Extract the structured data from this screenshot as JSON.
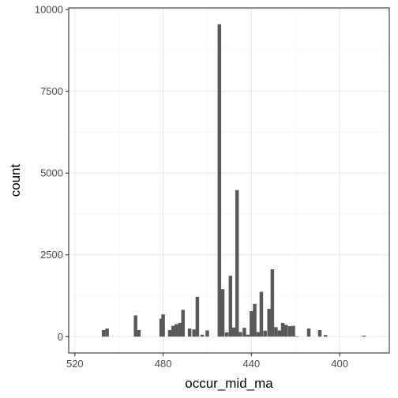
{
  "chart_data": {
    "type": "bar",
    "xlabel": "occur_mid_ma",
    "ylabel": "count",
    "x_reversed": true,
    "xlim": [
      522.8,
      377.5
    ],
    "ylim": [
      -500,
      10050
    ],
    "x_ticks": [
      520,
      480,
      440,
      400
    ],
    "x_tick_labels": [
      "520",
      "480",
      "440",
      "400"
    ],
    "y_ticks": [
      0,
      2500,
      5000,
      7500,
      10000
    ],
    "y_tick_labels": [
      "0",
      "2500",
      "5000",
      "7500",
      "10000"
    ],
    "grid": true,
    "bar_color": "#595959",
    "bin_width": 1.6,
    "x": [
      507.0,
      505.4,
      492.5,
      491.0,
      480.9,
      480.0,
      477.0,
      475.5,
      474.0,
      472.4,
      471.0,
      468.0,
      466.0,
      464.5,
      462.3,
      460.0,
      454.5,
      453.0,
      451.2,
      449.5,
      448.0,
      446.5,
      445.0,
      443.2,
      441.6,
      440.0,
      438.5,
      436.9,
      435.5,
      433.8,
      432.0,
      430.5,
      428.9,
      427.3,
      425.8,
      424.3,
      422.6,
      421.0,
      419.4,
      414.0,
      409.0,
      406.4,
      389.0
    ],
    "values": [
      200,
      250,
      650,
      200,
      550,
      680,
      200,
      330,
      380,
      420,
      820,
      250,
      220,
      1220,
      60,
      190,
      9550,
      1450,
      130,
      1860,
      280,
      4480,
      140,
      270,
      60,
      780,
      1000,
      140,
      1370,
      180,
      850,
      2060,
      290,
      190,
      420,
      360,
      320,
      330,
      10,
      250,
      200,
      50,
      30
    ],
    "colors": {
      "panel_border": "#333333",
      "grid_major": "#ebebeb",
      "grid_minor": "#f5f5f5",
      "tick": "#333333"
    }
  }
}
